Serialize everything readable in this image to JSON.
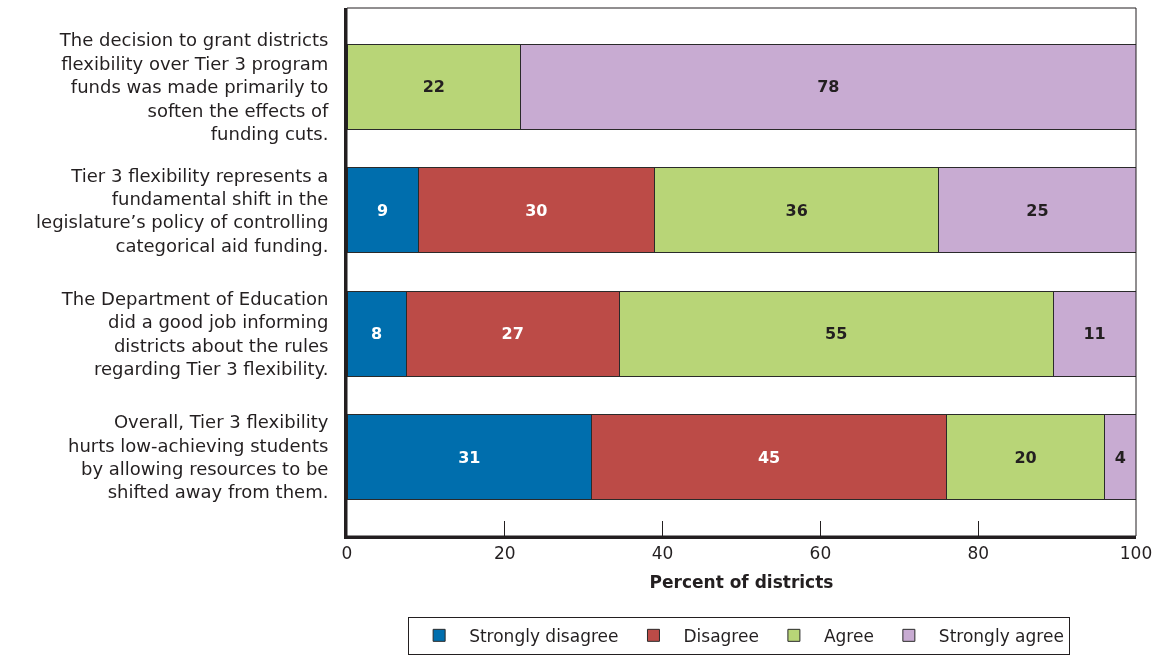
{
  "chart_data": {
    "type": "bar",
    "orientation": "horizontal",
    "stacked": true,
    "categories": [
      "The decision to grant districts\nflexibility over Tier 3 program\nfunds was made primarily to\nsoften the effects of\nfunding cuts.",
      "Tier 3 flexibility represents a\nfundamental shift in the\nlegislature’s policy of controlling\ncategorical aid funding.",
      "The Department of Education\ndid a good job informing\ndistricts about the rules\nregarding Tier 3 flexibility.",
      "Overall, Tier 3 flexibility\nhurts low-achieving students\nby allowing resources to be\nshifted away from them."
    ],
    "series": [
      {
        "name": "Strongly disagree",
        "color": "#006ead",
        "values": [
          null,
          9,
          7.5,
          31
        ],
        "value_labels": [
          null,
          "9",
          "8",
          "31"
        ]
      },
      {
        "name": "Disagree",
        "color": "#bc4b47",
        "values": [
          null,
          30,
          27,
          45
        ],
        "value_labels": [
          null,
          "30",
          "27",
          "45"
        ]
      },
      {
        "name": "Agree",
        "color": "#b8d577",
        "values": [
          22,
          36,
          55,
          20
        ],
        "value_labels": [
          "22",
          "36",
          "55",
          "20"
        ]
      },
      {
        "name": "Strongly agree",
        "color": "#c8abd2",
        "values": [
          78,
          25,
          10.5,
          4
        ],
        "value_labels": [
          "78",
          "25",
          "11",
          "4"
        ]
      }
    ],
    "xlabel": "Percent of districts",
    "xlim": [
      0,
      100
    ],
    "xticks": [
      0,
      20,
      40,
      60,
      80,
      100
    ],
    "grid": false,
    "legend": "bottom"
  }
}
